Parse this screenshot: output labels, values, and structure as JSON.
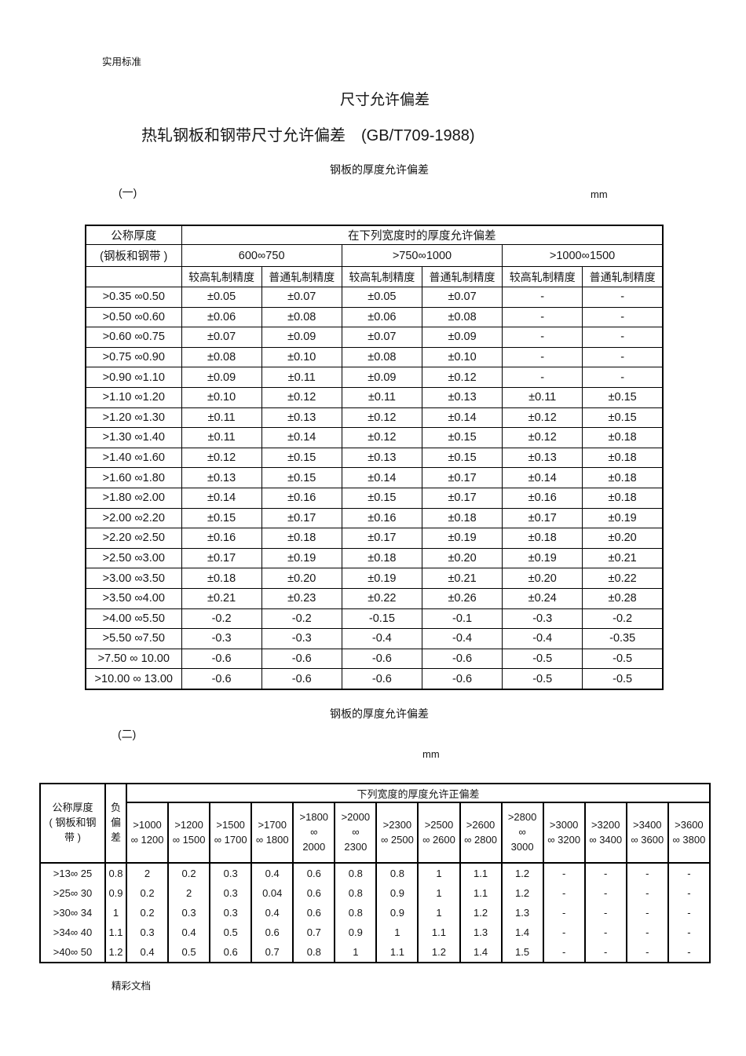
{
  "page": {
    "header_note": "实用标准",
    "title": "尺寸允许偏差",
    "subtitle": "热轧钢板和钢带尺寸允许偏差",
    "subtitle_ref": "(GB/T709-1988)",
    "footer_note": "精彩文档"
  },
  "section1": {
    "caption": "钢板的厚度允许偏差",
    "index_label": "(一)",
    "unit": "mm"
  },
  "section2": {
    "caption": "钢板的厚度允许偏差",
    "index_label": "(二)",
    "unit": "mm"
  },
  "table1": {
    "corner_top": "公称厚度",
    "corner_mid": "(钢板和钢带 )",
    "span_header": "在下列宽度时的厚度允许偏差",
    "width_groups": [
      "600∞750",
      ">750∞1000",
      ">1000∞1500"
    ],
    "precision_high": "较高轧制精度",
    "precision_normal": "普通轧制精度",
    "rows": [
      {
        "range": ">0.35 ∞0.50",
        "values": [
          "±0.05",
          "±0.07",
          "±0.05",
          "±0.07",
          "-",
          "-"
        ]
      },
      {
        "range": ">0.50 ∞0.60",
        "values": [
          "±0.06",
          "±0.08",
          "±0.06",
          "±0.08",
          "-",
          "-"
        ]
      },
      {
        "range": ">0.60 ∞0.75",
        "values": [
          "±0.07",
          "±0.09",
          "±0.07",
          "±0.09",
          "-",
          "-"
        ]
      },
      {
        "range": ">0.75 ∞0.90",
        "values": [
          "±0.08",
          "±0.10",
          "±0.08",
          "±0.10",
          "-",
          "-"
        ]
      },
      {
        "range": ">0.90 ∞1.10",
        "values": [
          "±0.09",
          "±0.11",
          "±0.09",
          "±0.12",
          "-",
          "-"
        ]
      },
      {
        "range": ">1.10 ∞1.20",
        "values": [
          "±0.10",
          "±0.12",
          "±0.11",
          "±0.13",
          "±0.11",
          "±0.15"
        ]
      },
      {
        "range": ">1.20 ∞1.30",
        "values": [
          "±0.11",
          "±0.13",
          "±0.12",
          "±0.14",
          "±0.12",
          "±0.15"
        ]
      },
      {
        "range": ">1.30 ∞1.40",
        "values": [
          "±0.11",
          "±0.14",
          "±0.12",
          "±0.15",
          "±0.12",
          "±0.18"
        ]
      },
      {
        "range": ">1.40 ∞1.60",
        "values": [
          "±0.12",
          "±0.15",
          "±0.13",
          "±0.15",
          "±0.13",
          "±0.18"
        ]
      },
      {
        "range": ">1.60 ∞1.80",
        "values": [
          "±0.13",
          "±0.15",
          "±0.14",
          "±0.17",
          "±0.14",
          "±0.18"
        ]
      },
      {
        "range": ">1.80 ∞2.00",
        "values": [
          "±0.14",
          "±0.16",
          "±0.15",
          "±0.17",
          "±0.16",
          "±0.18"
        ]
      },
      {
        "range": ">2.00 ∞2.20",
        "values": [
          "±0.15",
          "±0.17",
          "±0.16",
          "±0.18",
          "±0.17",
          "±0.19"
        ]
      },
      {
        "range": ">2.20 ∞2.50",
        "values": [
          "±0.16",
          "±0.18",
          "±0.17",
          "±0.19",
          "±0.18",
          "±0.20"
        ]
      },
      {
        "range": ">2.50 ∞3.00",
        "values": [
          "±0.17",
          "±0.19",
          "±0.18",
          "±0.20",
          "±0.19",
          "±0.21"
        ]
      },
      {
        "range": ">3.00 ∞3.50",
        "values": [
          "±0.18",
          "±0.20",
          "±0.19",
          "±0.21",
          "±0.20",
          "±0.22"
        ]
      },
      {
        "range": ">3.50 ∞4.00",
        "values": [
          "±0.21",
          "±0.23",
          "±0.22",
          "±0.26",
          "±0.24",
          "±0.28"
        ]
      },
      {
        "range": ">4.00 ∞5.50",
        "values": [
          "-0.2",
          "-0.2",
          "-0.15",
          "-0.1",
          "-0.3",
          "-0.2"
        ]
      },
      {
        "range": ">5.50 ∞7.50",
        "values": [
          "-0.3",
          "-0.3",
          "-0.4",
          "-0.4",
          "-0.4",
          "-0.35"
        ]
      },
      {
        "range": ">7.50 ∞ 10.00",
        "values": [
          "-0.6",
          "-0.6",
          "-0.6",
          "-0.6",
          "-0.5",
          "-0.5"
        ]
      },
      {
        "range": ">10.00 ∞ 13.00",
        "values": [
          "-0.6",
          "-0.6",
          "-0.6",
          "-0.6",
          "-0.5",
          "-0.5"
        ]
      }
    ]
  },
  "table2": {
    "corner": "公称厚度\n( 钢板和钢\n带 )",
    "neg_dev": "负\n偏\n差",
    "span_header": "下列宽度的厚度允许正偏差",
    "width_cols": [
      ">1000\n∞ 1200",
      ">1200\n∞ 1500",
      ">1500\n∞ 1700",
      ">1700\n∞ 1800",
      ">1800\n∞\n2000",
      ">2000\n∞\n2300",
      ">2300\n∞ 2500",
      ">2500\n∞ 2600",
      ">2600\n∞ 2800",
      ">2800\n∞\n3000",
      ">3000\n∞ 3200",
      ">3200\n∞ 3400",
      ">3400\n∞ 3600",
      ">3600\n∞ 3800"
    ],
    "rows": [
      {
        "range": ">13∞ 25",
        "neg": "0.8",
        "values": [
          "2",
          "0.2",
          "0.3",
          "0.4",
          "0.6",
          "0.8",
          "0.8",
          "1",
          "1.1",
          "1.2",
          "-",
          "-",
          "-",
          "-"
        ]
      },
      {
        "range": ">25∞ 30",
        "neg": "0.9",
        "values": [
          "0.2",
          "2",
          "0.3",
          "0.04",
          "0.6",
          "0.8",
          "0.9",
          "1",
          "1.1",
          "1.2",
          "-",
          "-",
          "-",
          "-"
        ]
      },
      {
        "range": ">30∞ 34",
        "neg": "1",
        "values": [
          "0.2",
          "0.3",
          "0.3",
          "0.4",
          "0.6",
          "0.8",
          "0.9",
          "1",
          "1.2",
          "1.3",
          "-",
          "-",
          "-",
          "-"
        ]
      },
      {
        "range": ">34∞ 40",
        "neg": "1.1",
        "values": [
          "0.3",
          "0.4",
          "0.5",
          "0.6",
          "0.7",
          "0.9",
          "1",
          "1.1",
          "1.3",
          "1.4",
          "-",
          "-",
          "-",
          "-"
        ]
      },
      {
        "range": ">40∞ 50",
        "neg": "1.2",
        "values": [
          "0.4",
          "0.5",
          "0.6",
          "0.7",
          "0.8",
          "1",
          "1.1",
          "1.2",
          "1.4",
          "1.5",
          "-",
          "-",
          "-",
          "-"
        ]
      }
    ]
  }
}
